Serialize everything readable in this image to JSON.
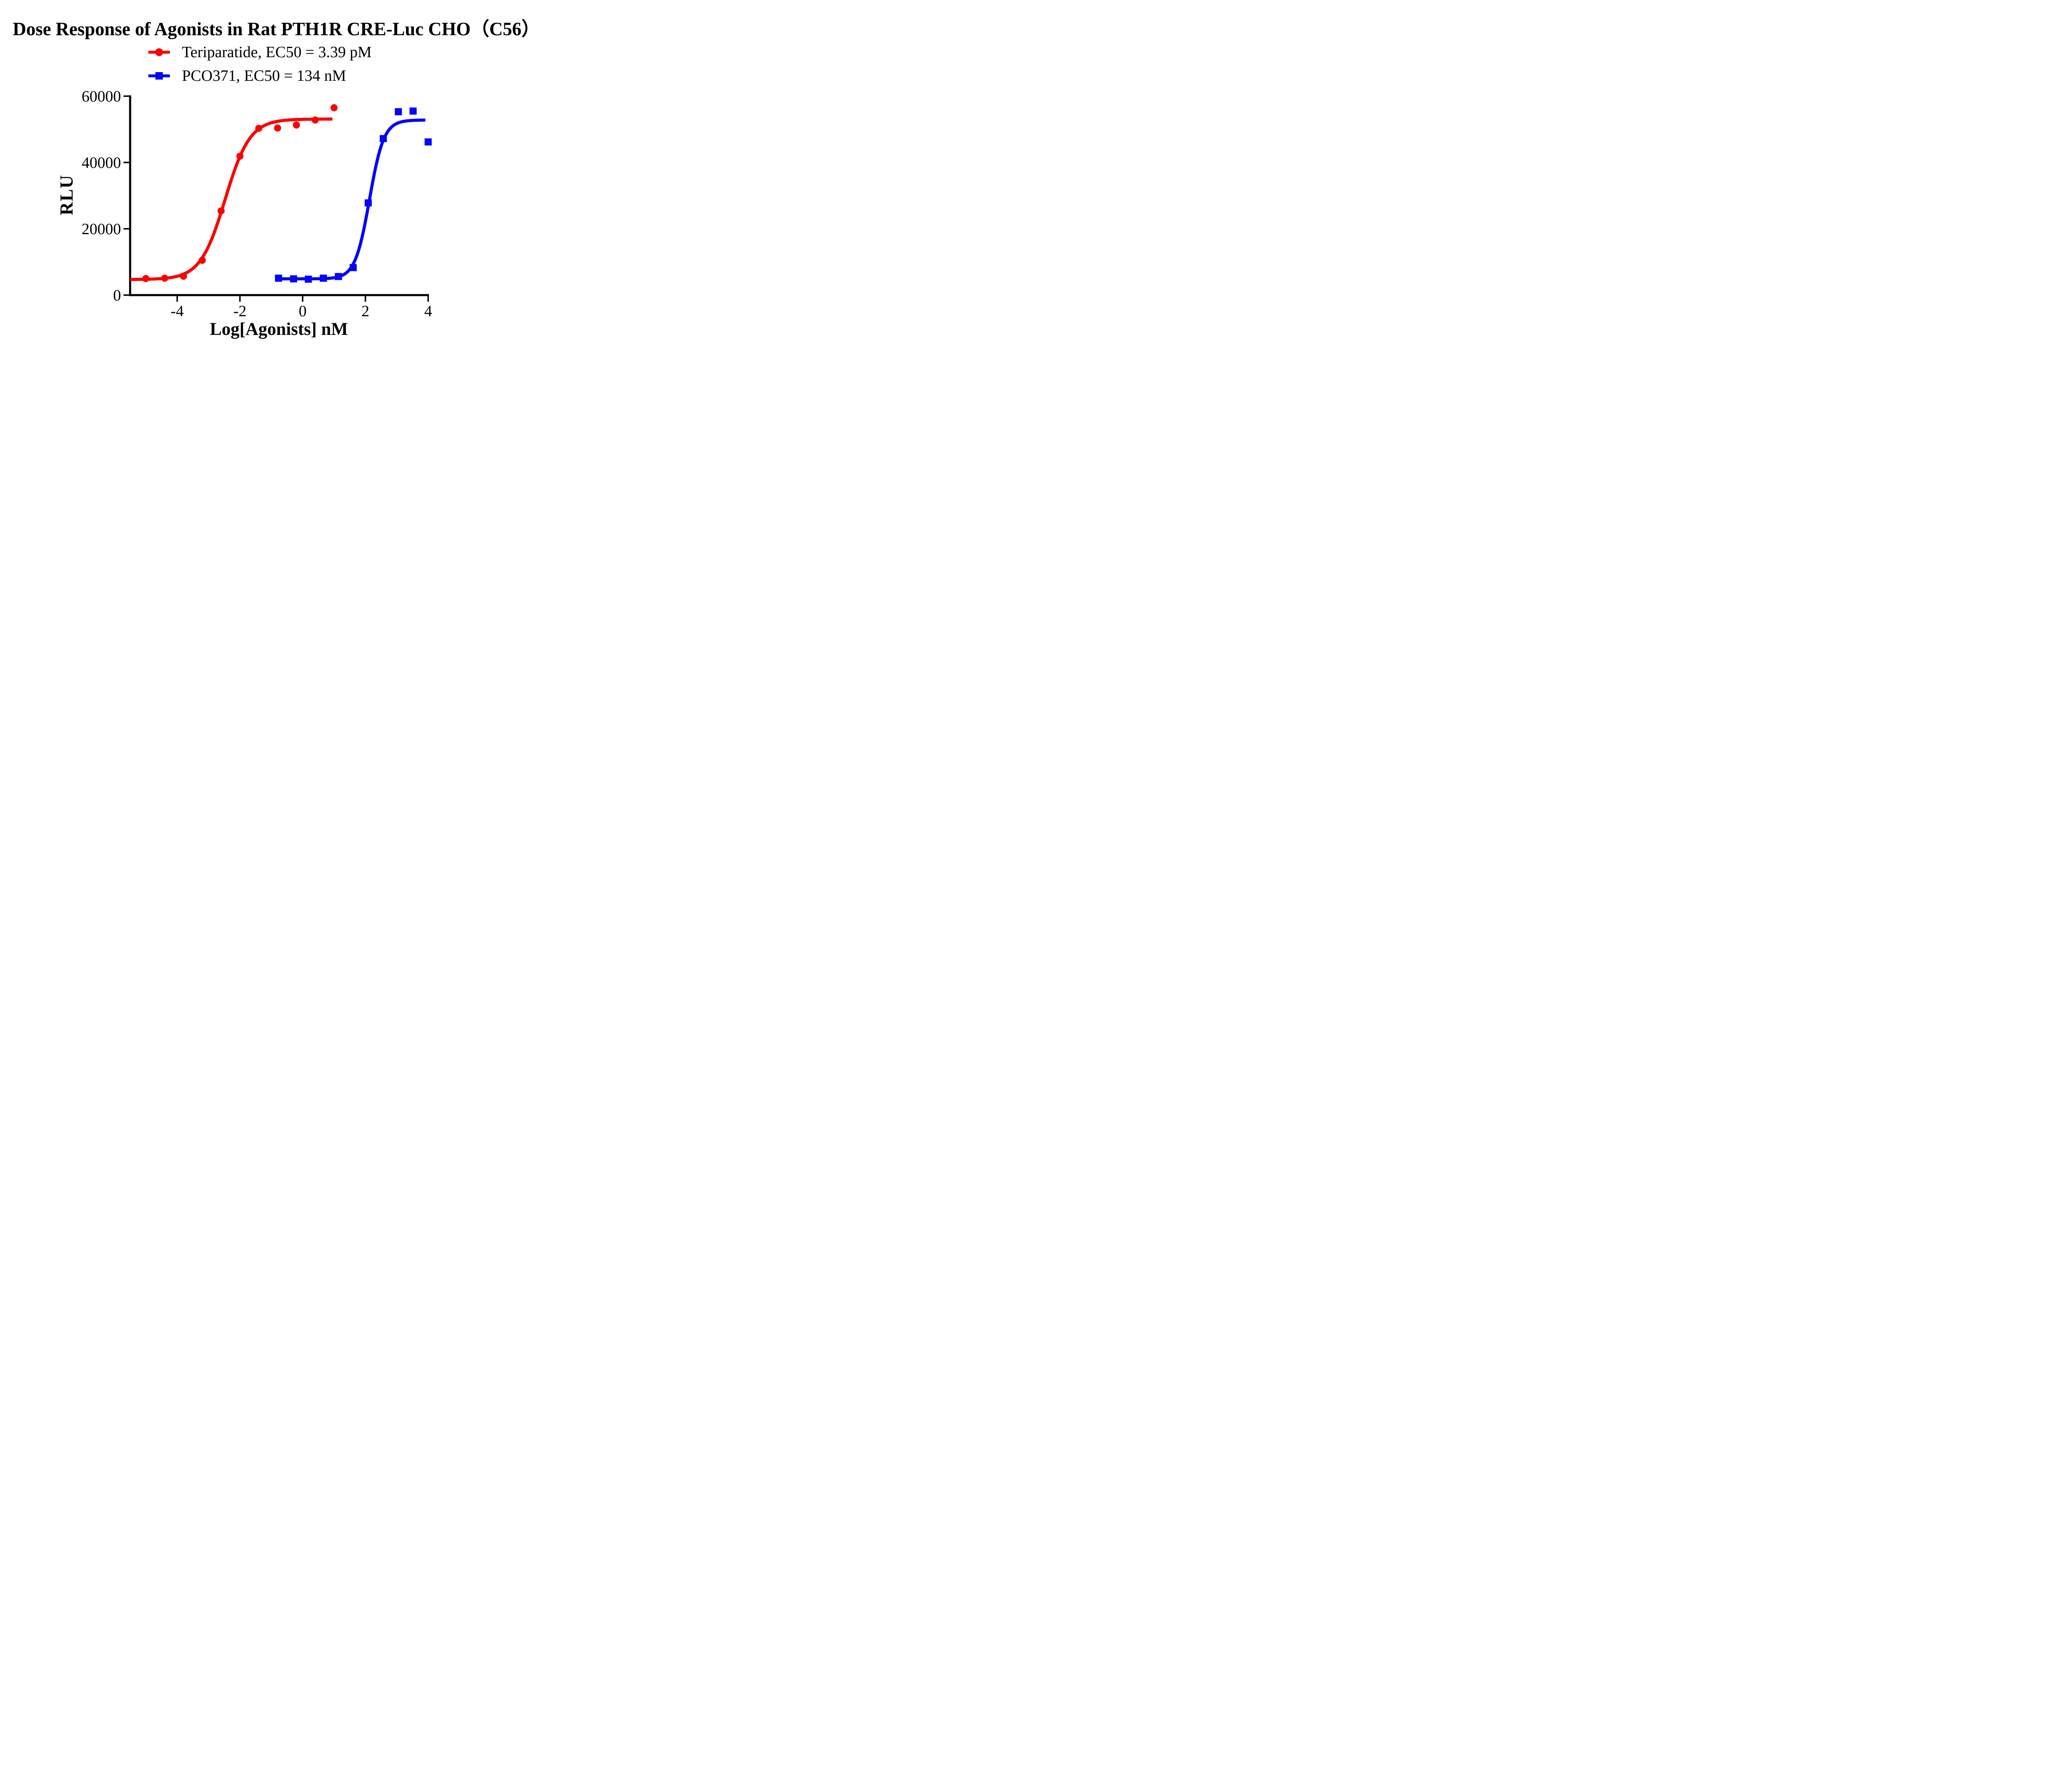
{
  "chart_data": {
    "type": "scatter",
    "title": "Dose Response of Agonists in Rat PTH1R CRE-Luc CHO（C56）",
    "xlabel": "Log[Agonists] nM",
    "ylabel": "RLU",
    "xlim": [
      -5.5,
      4.0
    ],
    "ylim": [
      0,
      60000
    ],
    "x_ticks": [
      -4,
      -2,
      0,
      2,
      4
    ],
    "y_ticks": [
      0,
      20000,
      40000,
      60000
    ],
    "grid": false,
    "legend_position": "top-center-below-title",
    "axis_color": "#000000",
    "background_color": "#ffffff",
    "series": [
      {
        "name": "Teriparatide",
        "label": "Teriparatide, EC50 = 3.39 pM",
        "ec50_text": "3.39 pM",
        "color": "#fb0200",
        "marker": "circle",
        "x": [
          -5.0,
          -4.4,
          -3.8,
          -3.2,
          -2.6,
          -2.0,
          -1.4,
          -0.8,
          -0.2,
          0.4,
          1.0
        ],
        "y": [
          5000,
          5100,
          5700,
          10500,
          25400,
          41900,
          50300,
          50400,
          51300,
          52800,
          56500
        ],
        "fit": {
          "model": "4PL",
          "bottom": 4700,
          "top": 53100,
          "log_ec50": -2.47,
          "hill": 1.1,
          "draw_range": [
            -5.5,
            0.97
          ]
        }
      },
      {
        "name": "PCO371",
        "label": "PCO371, EC50 = 134 nM",
        "ec50_text": "134 nM",
        "color": "#0404fa",
        "marker": "square",
        "x": [
          -0.77,
          -0.29,
          0.18,
          0.66,
          1.14,
          1.61,
          2.09,
          2.57,
          3.05,
          3.52,
          4.0
        ],
        "y": [
          5100,
          4900,
          4800,
          5100,
          5600,
          8300,
          27800,
          47200,
          55300,
          55500,
          46200
        ],
        "fit": {
          "model": "4PL",
          "bottom": 4900,
          "top": 52800,
          "log_ec50": 2.13,
          "hill": 1.9,
          "draw_range": [
            -0.8,
            3.93
          ]
        }
      }
    ]
  }
}
